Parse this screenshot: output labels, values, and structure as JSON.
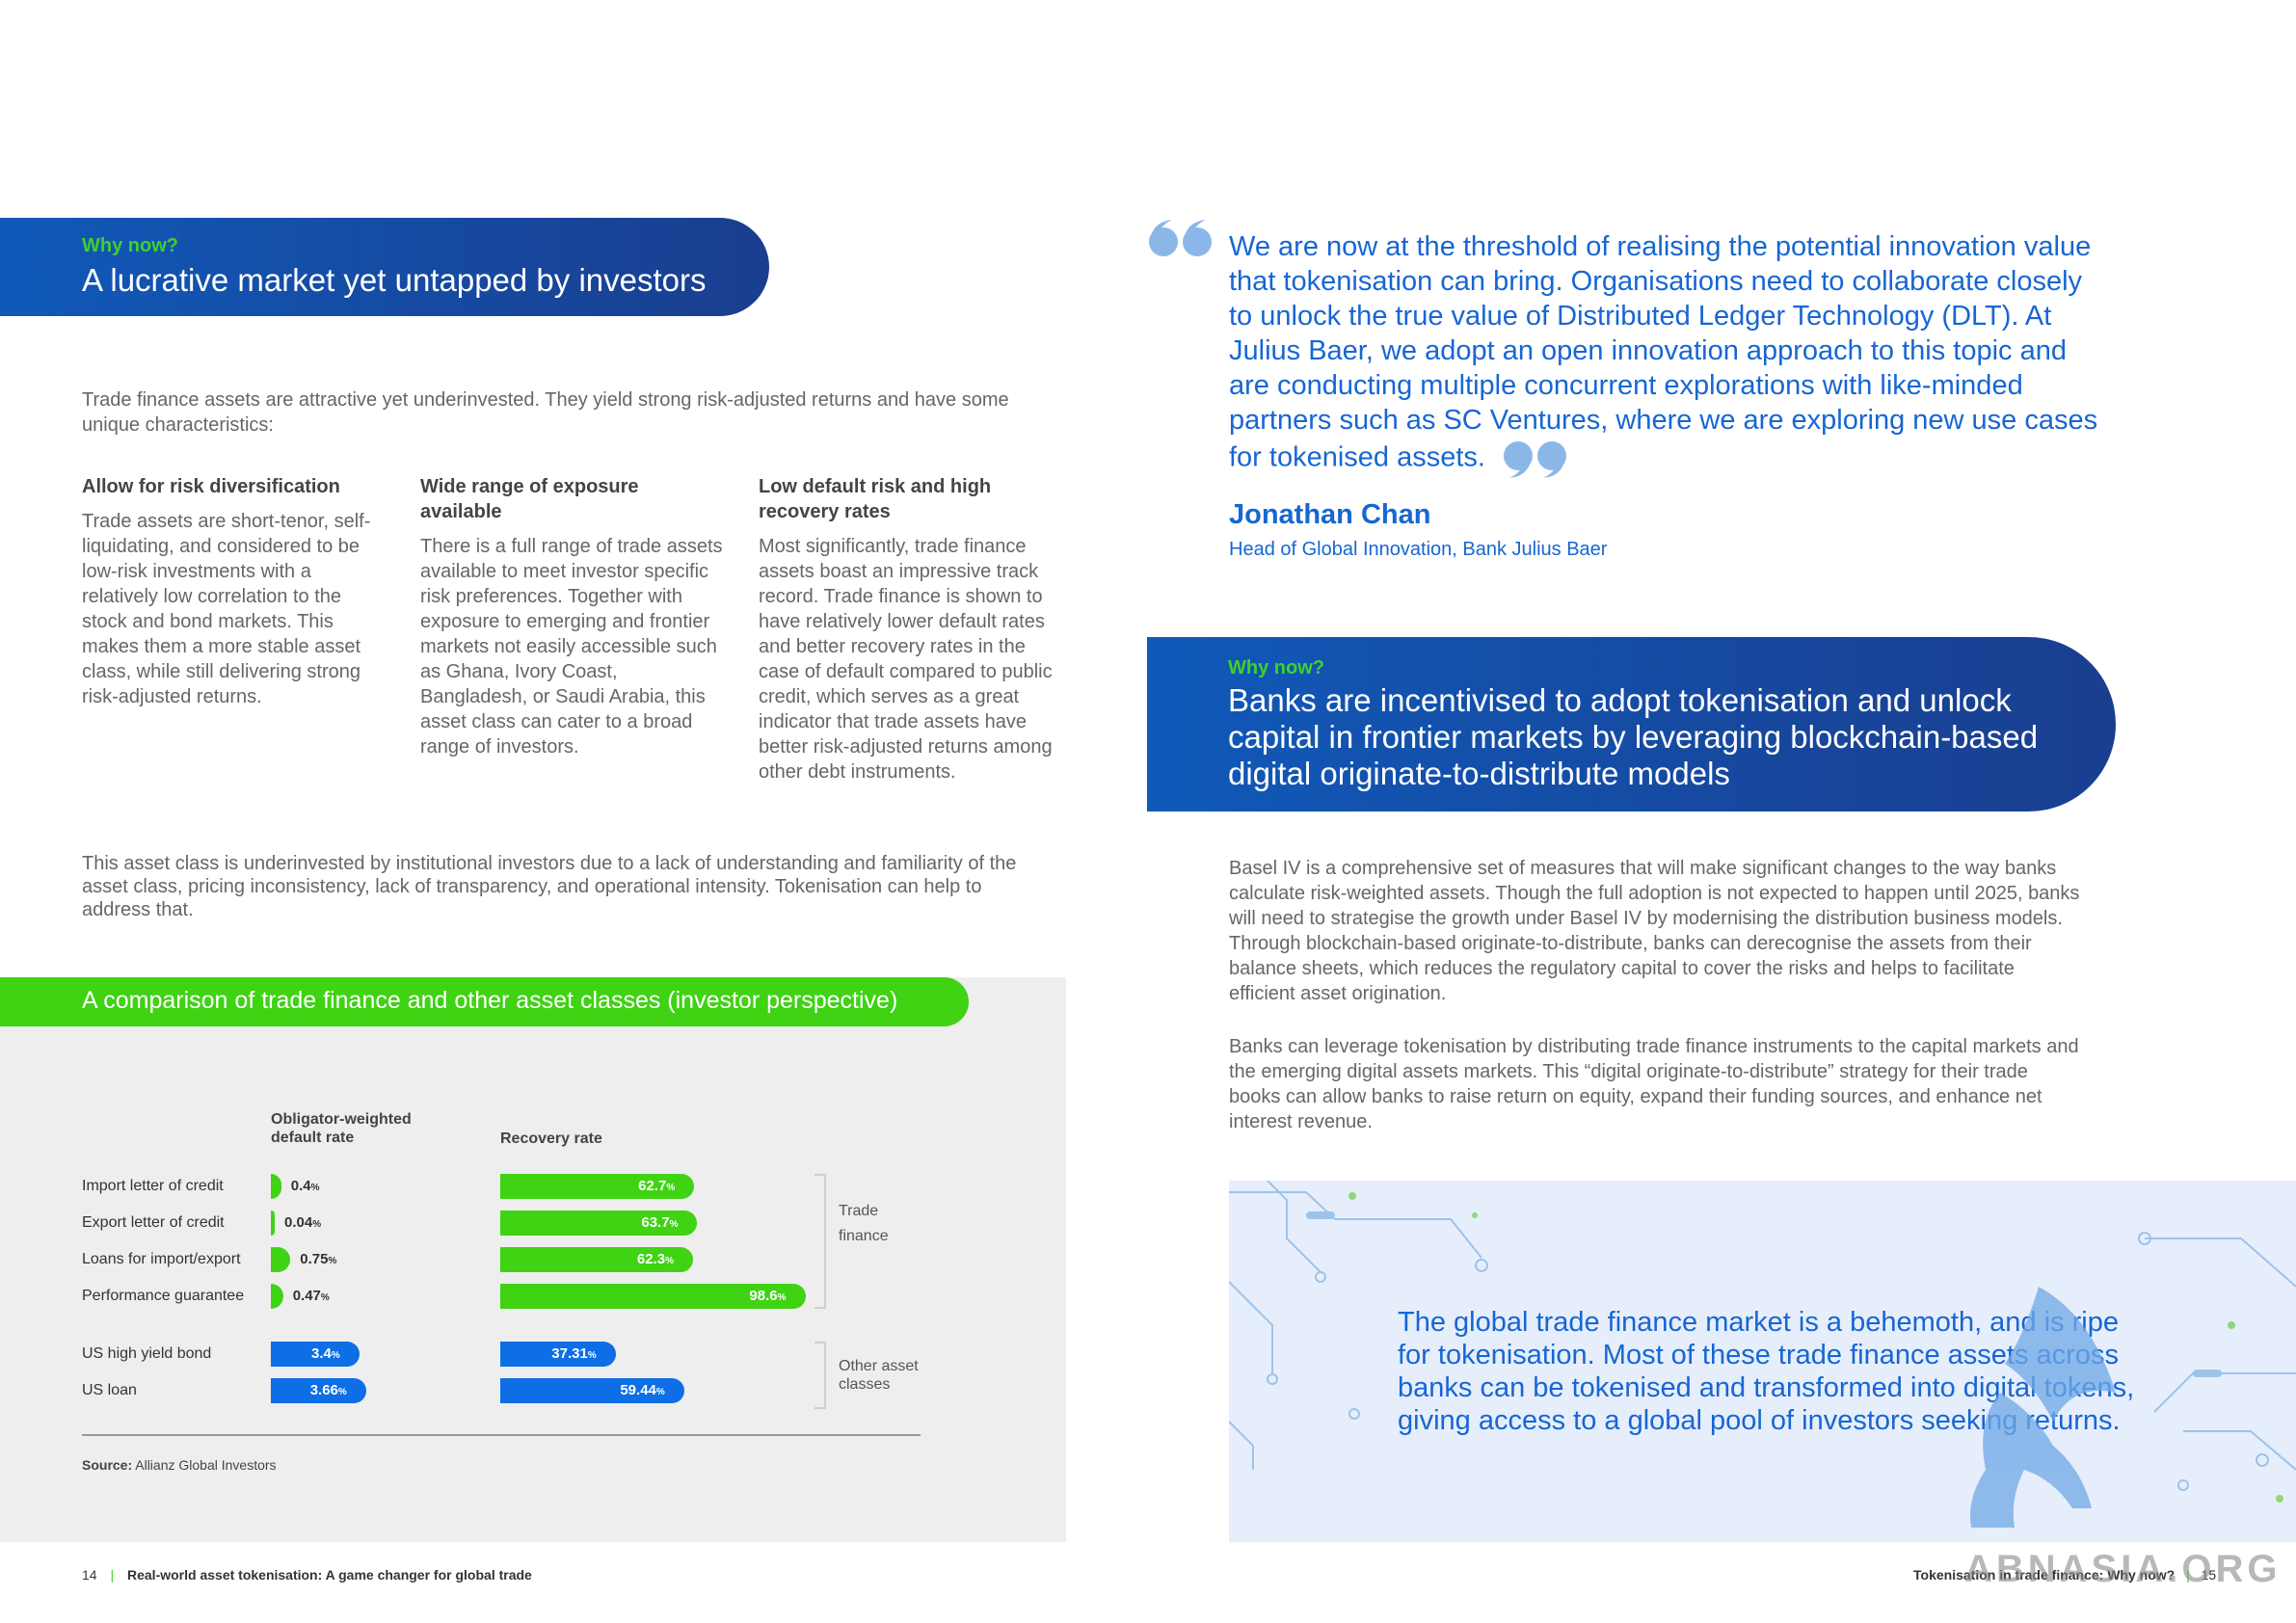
{
  "left": {
    "kicker": "Why now?",
    "title": "A lucrative market yet untapped by investors",
    "intro": "Trade finance assets are attractive yet underinvested. They yield strong risk-adjusted returns and have some unique characteristics:",
    "columns": [
      {
        "heading": "Allow for risk diversification",
        "body": "Trade assets are short-tenor, self-liquidating, and considered to be low-risk investments with a relatively low correlation to the stock and bond markets. This makes them a more stable asset class, while still delivering strong risk-adjusted returns."
      },
      {
        "heading": "Wide range of exposure available",
        "body": "There is a full range of trade assets available to meet investor specific risk preferences. Together with exposure to emerging and frontier markets not easily accessible such as Ghana, Ivory Coast, Bangladesh, or Saudi Arabia, this asset class can cater to a broad range of investors."
      },
      {
        "heading": "Low default risk and high recovery rates",
        "body": "Most significantly, trade finance assets boast an impressive track record. Trade finance is shown to have relatively lower default rates and better recovery rates in the case of default compared to public credit, which serves as a great indicator that trade assets have better risk-adjusted returns among other debt instruments."
      }
    ],
    "para2": "This asset class is underinvested by institutional investors due to a lack of understanding and familiarity of the asset class, pricing inconsistency, lack of transparency, and operational intensity. Tokenisation can help to address that.",
    "chart_title": "A comparison of trade finance and other asset classes (investor perspective)",
    "source_label": "Source:",
    "source_value": "Allianz Global Investors",
    "footer_page": "14",
    "footer_title": "Real-world asset tokenisation: A game changer for global trade"
  },
  "chart_data": {
    "type": "bar",
    "title": "A comparison of trade finance and other asset classes (investor perspective)",
    "categories": [
      "Import letter of credit",
      "Export letter of credit",
      "Loans for import/export",
      "Performance guarantee",
      "US high yield bond",
      "US loan"
    ],
    "series": [
      {
        "name": "Obligator-weighted default rate",
        "values": [
          0.4,
          0.04,
          0.75,
          0.47,
          3.4,
          3.66
        ],
        "labels": [
          "0.4",
          "0.04",
          "0.75",
          "0.47",
          "3.4",
          "3.66"
        ],
        "unit": "%"
      },
      {
        "name": "Recovery rate",
        "values": [
          62.7,
          63.7,
          62.3,
          98.6,
          37.31,
          59.44
        ],
        "labels": [
          "62.7",
          "63.7",
          "62.3",
          "98.6",
          "37.31",
          "59.44"
        ],
        "unit": "%"
      }
    ],
    "groups": [
      {
        "label": "Trade finance",
        "members": [
          0,
          1,
          2,
          3
        ]
      },
      {
        "label": "Other asset classes",
        "members": [
          4,
          5
        ]
      }
    ],
    "colors": {
      "trade": "#3fd313",
      "other": "#0d6ee6"
    }
  },
  "right": {
    "quote": "We are now at the threshold of realising the potential innovation value that tokenisation can bring. Organisations need to collaborate closely to unlock the true value of Distributed Ledger Technology (DLT). At Julius Baer, we adopt an open innovation approach to this topic and are conducting multiple concurrent explorations with like-minded partners such as SC Ventures, where we are exploring new use cases for tokenised assets.",
    "quote_name": "Jonathan Chan",
    "quote_role": "Head of Global Innovation, Bank Julius Baer",
    "kicker": "Why now?",
    "title": "Banks are incentivised to adopt tokenisation and unlock capital in frontier markets by leveraging blockchain-based digital originate-to-distribute models",
    "para1": "Basel IV is a comprehensive set of measures that will make significant changes to the way banks calculate risk-weighted assets. Though the full adoption is not expected to happen until 2025, banks will need to strategise the growth under Basel IV by modernising the distribution business models. Through blockchain-based originate-to-distribute, banks can derecognise the assets from their balance sheets, which reduces the regulatory capital to cover the risks and helps to facilitate efficient asset origination.",
    "para2": "Banks can leverage tokenisation by distributing trade finance instruments to the capital markets and the emerging digital assets markets. This “digital originate-to-distribute” strategy for their trade books can allow banks to raise return on equity, expand their funding sources, and enhance net interest revenue.",
    "callout": "The global trade finance market is a behemoth, and is ripe for tokenisation. Most of these trade finance assets across banks can be tokenised and transformed into digital tokens, giving access to a global pool of investors seeking returns.",
    "footer_title": "Tokenisation in trade finance: Why now?",
    "footer_page": "15",
    "watermark": "ABNASIA.ORG"
  }
}
